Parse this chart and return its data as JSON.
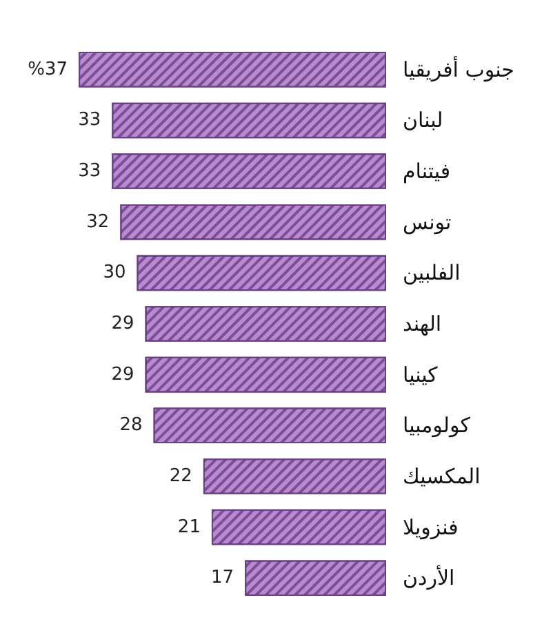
{
  "chart_data": {
    "type": "bar",
    "orientation": "horizontal",
    "categories": [
      "جنوب أفريقيا",
      "لبنان",
      "فيتنام",
      "تونس",
      "الفلبين",
      "الهند",
      "كينيا",
      "كولومبيا",
      "المكسيك",
      "فنزويلا",
      "الأردن"
    ],
    "values": [
      37,
      33,
      33,
      32,
      30,
      29,
      29,
      28,
      22,
      21,
      17
    ],
    "value_labels": [
      "%37",
      "33",
      "33",
      "32",
      "30",
      "29",
      "29",
      "28",
      "22",
      "21",
      "17"
    ],
    "color": "#b98ad0"
  }
}
